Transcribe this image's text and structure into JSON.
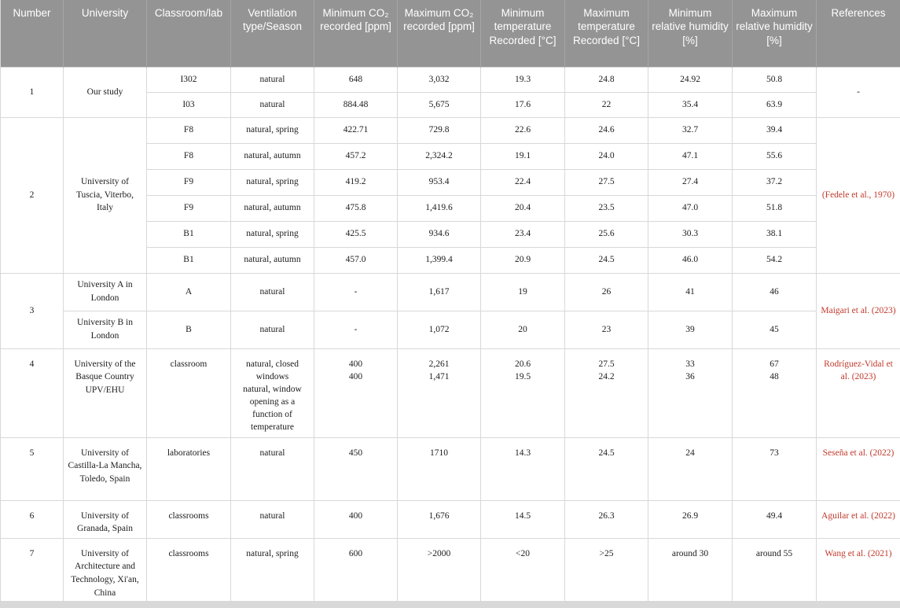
{
  "colors": {
    "header_background": "#949494",
    "header_text": "#ffffff",
    "reference_link_red": "#c0392b",
    "grid_border": "#d8d8d8"
  },
  "header": {
    "columns": [
      "Number",
      "University",
      "Classroom/lab",
      "Ventilation type/Season",
      "Minimum CO₂ recorded [ppm]",
      "Maximum CO₂ recorded [ppm]",
      "Minimum temperature Recorded [°C]",
      "Maximum temperature Recorded [°C]",
      "Minimum relative humidity [%]",
      "Maximum relative humidity [%]",
      "References"
    ]
  },
  "rows": [
    {
      "cells": [
        {
          "t": "1",
          "rs": 2,
          "name": "row-number"
        },
        {
          "t": "Our study",
          "rs": 2,
          "name": "university-cell"
        },
        {
          "t": "I302"
        },
        {
          "t": "natural"
        },
        {
          "t": "648"
        },
        {
          "t": "3,032"
        },
        {
          "t": "19.3"
        },
        {
          "t": "24.8"
        },
        {
          "t": "24.92"
        },
        {
          "t": "50.8"
        },
        {
          "t": "-",
          "rs": 2,
          "name": "reference-cell"
        }
      ]
    },
    {
      "cells": [
        {
          "t": "I03"
        },
        {
          "t": "natural"
        },
        {
          "t": "884.48"
        },
        {
          "t": "5,675"
        },
        {
          "t": "17.6"
        },
        {
          "t": "22"
        },
        {
          "t": "35.4"
        },
        {
          "t": "63.9"
        }
      ]
    },
    {
      "cells": [
        {
          "t": "2",
          "rs": 6,
          "name": "row-number"
        },
        {
          "t": "University of Tuscia, Viterbo, Italy",
          "rs": 6,
          "name": "university-cell"
        },
        {
          "t": "F8"
        },
        {
          "t": "natural, spring"
        },
        {
          "t": "422.71"
        },
        {
          "t": "729.8"
        },
        {
          "t": "22.6"
        },
        {
          "t": "24.6"
        },
        {
          "t": "32.7"
        },
        {
          "t": "39.4"
        },
        {
          "t": "(Fedele et al., 1970)",
          "rs": 6,
          "ref": true,
          "name": "reference-cell"
        }
      ]
    },
    {
      "cells": [
        {
          "t": "F8"
        },
        {
          "t": "natural, autumn"
        },
        {
          "t": "457.2"
        },
        {
          "t": "2,324.2"
        },
        {
          "t": "19.1"
        },
        {
          "t": "24.0"
        },
        {
          "t": "47.1"
        },
        {
          "t": "55.6"
        }
      ]
    },
    {
      "cells": [
        {
          "t": "F9"
        },
        {
          "t": "natural, spring"
        },
        {
          "t": "419.2"
        },
        {
          "t": "953.4"
        },
        {
          "t": "22.4"
        },
        {
          "t": "27.5"
        },
        {
          "t": "27.4"
        },
        {
          "t": "37.2"
        }
      ]
    },
    {
      "cells": [
        {
          "t": "F9"
        },
        {
          "t": "natural, autumn"
        },
        {
          "t": "475.8"
        },
        {
          "t": "1,419.6"
        },
        {
          "t": "20.4"
        },
        {
          "t": "23.5"
        },
        {
          "t": "47.0"
        },
        {
          "t": "51.8"
        }
      ]
    },
    {
      "cells": [
        {
          "t": "B1"
        },
        {
          "t": "natural, spring"
        },
        {
          "t": "425.5"
        },
        {
          "t": "934.6"
        },
        {
          "t": "23.4"
        },
        {
          "t": "25.6"
        },
        {
          "t": "30.3"
        },
        {
          "t": "38.1"
        }
      ]
    },
    {
      "cells": [
        {
          "t": "B1"
        },
        {
          "t": "natural, autumn"
        },
        {
          "t": "457.0"
        },
        {
          "t": "1,399.4"
        },
        {
          "t": "20.9"
        },
        {
          "t": "24.5"
        },
        {
          "t": "46.0"
        },
        {
          "t": "54.2"
        }
      ]
    },
    {
      "cells": [
        {
          "t": "3",
          "rs": 2,
          "name": "row-number"
        },
        {
          "t": "University A in London",
          "name": "university-cell"
        },
        {
          "t": "A"
        },
        {
          "t": "natural"
        },
        {
          "t": "-"
        },
        {
          "t": "1,617"
        },
        {
          "t": "19"
        },
        {
          "t": "26"
        },
        {
          "t": "41"
        },
        {
          "t": "46"
        },
        {
          "t": "Maigari et al. (2023)",
          "rs": 2,
          "ref": true,
          "name": "reference-cell"
        }
      ]
    },
    {
      "cells": [
        {
          "t": "University B in London",
          "name": "university-cell"
        },
        {
          "t": "B"
        },
        {
          "t": "natural"
        },
        {
          "t": "-"
        },
        {
          "t": "1,072"
        },
        {
          "t": "20"
        },
        {
          "t": "23"
        },
        {
          "t": "39"
        },
        {
          "t": "45"
        }
      ]
    },
    {
      "cells": [
        {
          "t": "4",
          "name": "row-number"
        },
        {
          "t": "University of the Basque Country UPV/EHU",
          "name": "university-cell"
        },
        {
          "t": "classroom"
        },
        {
          "t": "natural, closed windows\nnatural, window opening as a function of temperature",
          "pre": true
        },
        {
          "t": "400\n400",
          "pre": true
        },
        {
          "t": "2,261\n1,471",
          "pre": true
        },
        {
          "t": "20.6\n19.5",
          "pre": true
        },
        {
          "t": "27.5\n24.2",
          "pre": true
        },
        {
          "t": "33\n36",
          "pre": true
        },
        {
          "t": "67\n48",
          "pre": true
        },
        {
          "t": "Rodríguez-Vidal et al. (2023)",
          "ref": true,
          "name": "reference-cell"
        }
      ]
    },
    {
      "cells": [
        {
          "t": "5",
          "name": "row-number"
        },
        {
          "t": "University of Castilla-La Mancha, Toledo, Spain",
          "name": "university-cell"
        },
        {
          "t": "laboratories"
        },
        {
          "t": "natural"
        },
        {
          "t": "450"
        },
        {
          "t": "1710"
        },
        {
          "t": "14.3"
        },
        {
          "t": "24.5"
        },
        {
          "t": "24"
        },
        {
          "t": "73"
        },
        {
          "t": "Seseña et al. (2022)",
          "ref": true,
          "name": "reference-cell"
        }
      ]
    },
    {
      "cells": [
        {
          "t": "6",
          "name": "row-number"
        },
        {
          "t": "University of Granada, Spain",
          "name": "university-cell"
        },
        {
          "t": "classrooms"
        },
        {
          "t": "natural"
        },
        {
          "t": "400"
        },
        {
          "t": "1,676"
        },
        {
          "t": "14.5"
        },
        {
          "t": "26.3"
        },
        {
          "t": "26.9"
        },
        {
          "t": "49.4"
        },
        {
          "t": "Aguilar et al. (2022)",
          "ref": true,
          "name": "reference-cell"
        }
      ]
    },
    {
      "cells": [
        {
          "t": "7",
          "name": "row-number"
        },
        {
          "t": "University of Architecture and Technology, Xi'an, China",
          "name": "university-cell"
        },
        {
          "t": "classrooms"
        },
        {
          "t": "natural, spring"
        },
        {
          "t": "600"
        },
        {
          "t": ">2000"
        },
        {
          "t": "<20"
        },
        {
          "t": ">25"
        },
        {
          "t": "around 30"
        },
        {
          "t": "around 55"
        },
        {
          "t": "Wang et al. (2021)",
          "ref": true,
          "name": "reference-cell"
        }
      ]
    }
  ]
}
